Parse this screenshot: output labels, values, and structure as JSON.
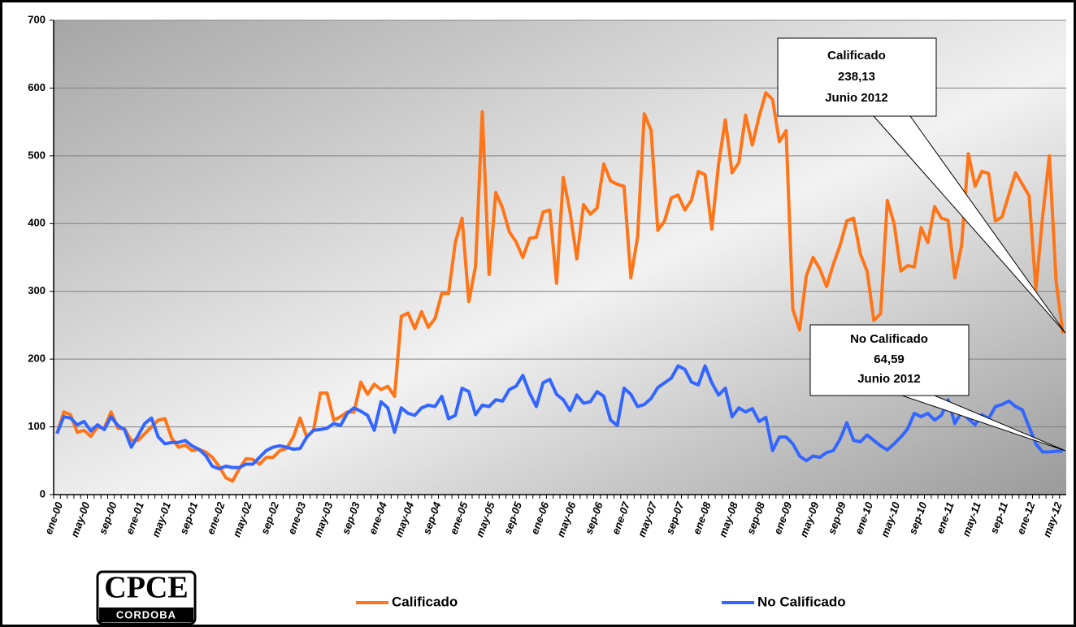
{
  "chart_data": {
    "type": "line",
    "categories": [
      "ene-00",
      null,
      null,
      null,
      "may-00",
      null,
      null,
      null,
      "sep-00",
      null,
      null,
      null,
      "ene-01",
      null,
      null,
      null,
      "may-01",
      null,
      null,
      null,
      "sep-01",
      null,
      null,
      null,
      "ene-02",
      null,
      null,
      null,
      "may-02",
      null,
      null,
      null,
      "sep-02",
      null,
      null,
      null,
      "ene-03",
      null,
      null,
      null,
      "may-03",
      null,
      null,
      null,
      "sep-03",
      null,
      null,
      null,
      "ene-04",
      null,
      null,
      null,
      "may-04",
      null,
      null,
      null,
      "sep-04",
      null,
      null,
      null,
      "ene-05",
      null,
      null,
      null,
      "may-05",
      null,
      null,
      null,
      "sep-05",
      null,
      null,
      null,
      "ene-06",
      null,
      null,
      null,
      "may-06",
      null,
      null,
      null,
      "sep-06",
      null,
      null,
      null,
      "ene-07",
      null,
      null,
      null,
      "may-07",
      null,
      null,
      null,
      "sep-07",
      null,
      null,
      null,
      "ene-08",
      null,
      null,
      null,
      "may-08",
      null,
      null,
      null,
      "sep-08",
      null,
      null,
      null,
      "ene-09",
      null,
      null,
      null,
      "may-09",
      null,
      null,
      null,
      "sep-09",
      null,
      null,
      null,
      "ene-10",
      null,
      null,
      null,
      "may-10",
      null,
      null,
      null,
      "sep-10",
      null,
      null,
      null,
      "ene-11",
      null,
      null,
      null,
      "may-11",
      null,
      null,
      null,
      "sep-11",
      null,
      null,
      null,
      "ene-12",
      null,
      null,
      null,
      "may-12",
      null
    ],
    "series": [
      {
        "name": "Calificado",
        "color": "#ff7518",
        "values": [
          90,
          122,
          118,
          92,
          95,
          86,
          100,
          98,
          122,
          98,
          97,
          80,
          80,
          90,
          100,
          110,
          112,
          83,
          70,
          73,
          65,
          67,
          63,
          55,
          42,
          25,
          20,
          38,
          53,
          52,
          45,
          55,
          55,
          65,
          68,
          85,
          113,
          85,
          95,
          150,
          150,
          110,
          115,
          122,
          122,
          166,
          148,
          163,
          155,
          160,
          145,
          263,
          268,
          245,
          270,
          247,
          260,
          297,
          297,
          372,
          408,
          285,
          337,
          565,
          325,
          446,
          423,
          388,
          373,
          350,
          378,
          380,
          417,
          420,
          312,
          468,
          417,
          348,
          428,
          414,
          423,
          488,
          463,
          458,
          455,
          320,
          380,
          562,
          538,
          390,
          404,
          438,
          442,
          420,
          435,
          477,
          472,
          392,
          488,
          553,
          475,
          490,
          560,
          516,
          558,
          593,
          583,
          521,
          537,
          273,
          243,
          323,
          350,
          333,
          307,
          340,
          368,
          404,
          408,
          355,
          330,
          257,
          267,
          434,
          400,
          330,
          338,
          336,
          394,
          372,
          425,
          408,
          405,
          320,
          368,
          503,
          455,
          477,
          474,
          404,
          410,
          443,
          475,
          458,
          441,
          303,
          410,
          500,
          315,
          238.13
        ]
      },
      {
        "name": "No Calificado",
        "color": "#3366ff",
        "values": [
          90,
          115,
          113,
          103,
          108,
          94,
          103,
          96,
          115,
          102,
          96,
          70,
          87,
          105,
          113,
          85,
          75,
          77,
          77,
          80,
          72,
          67,
          58,
          42,
          38,
          42,
          40,
          40,
          45,
          45,
          55,
          65,
          70,
          72,
          70,
          67,
          68,
          85,
          95,
          96,
          98,
          105,
          102,
          120,
          128,
          123,
          117,
          95,
          137,
          128,
          92,
          128,
          120,
          117,
          128,
          132,
          130,
          145,
          112,
          117,
          157,
          152,
          118,
          132,
          130,
          140,
          138,
          155,
          160,
          176,
          150,
          130,
          165,
          170,
          148,
          140,
          124,
          147,
          135,
          137,
          152,
          145,
          110,
          102,
          157,
          148,
          130,
          133,
          142,
          158,
          165,
          172,
          190,
          185,
          166,
          162,
          190,
          165,
          147,
          157,
          115,
          128,
          122,
          127,
          108,
          114,
          65,
          85,
          85,
          75,
          57,
          50,
          57,
          55,
          62,
          65,
          82,
          106,
          80,
          78,
          88,
          80,
          72,
          66,
          75,
          85,
          97,
          120,
          115,
          120,
          110,
          117,
          140,
          105,
          122,
          112,
          103,
          118,
          112,
          130,
          133,
          138,
          130,
          125,
          100,
          75,
          63,
          63,
          64,
          64.59
        ]
      }
    ],
    "ylim": [
      0,
      700
    ],
    "yticks": [
      0,
      100,
      200,
      300,
      400,
      500,
      600,
      700
    ],
    "grid": true,
    "legend": "bottom",
    "annotations": [
      {
        "lines": [
          "Calificado",
          "238,13",
          "Junio 2012"
        ]
      },
      {
        "lines": [
          "No Calificado",
          "64,59",
          "Junio 2012"
        ]
      }
    ],
    "logo": {
      "name": "CPCE",
      "sub": "CORDOBA"
    }
  }
}
